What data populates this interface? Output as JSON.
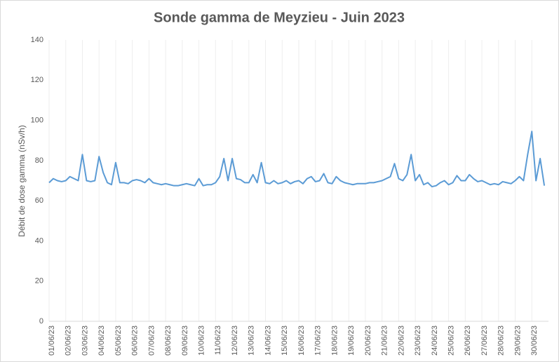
{
  "chart_data": {
    "type": "line",
    "title": "Sonde gamma de Meyzieu - Juin 2023",
    "y_label": "Débit de dose gamma (nSv/h)",
    "categories": [
      "01/06/23",
      null,
      null,
      null,
      "02/06/23",
      null,
      null,
      null,
      "03/06/23",
      null,
      null,
      null,
      "04/06/23",
      null,
      null,
      null,
      "05/06/23",
      null,
      null,
      null,
      "06/06/23",
      null,
      null,
      null,
      "07/06/23",
      null,
      null,
      null,
      "08/06/23",
      null,
      null,
      null,
      "09/06/23",
      null,
      null,
      null,
      "10/06/23",
      null,
      null,
      null,
      "11/06/23",
      null,
      null,
      null,
      "12/06/23",
      null,
      null,
      null,
      "13/06/23",
      null,
      null,
      null,
      "14/06/23",
      null,
      null,
      null,
      "15/06/23",
      null,
      null,
      null,
      "16/06/23",
      null,
      null,
      null,
      "17/06/23",
      null,
      null,
      null,
      "18/06/23",
      null,
      null,
      null,
      "19/06/23",
      null,
      null,
      null,
      "20/06/23",
      null,
      null,
      null,
      "21/06/23",
      null,
      null,
      null,
      "22/06/23",
      null,
      null,
      null,
      "23/06/23",
      null,
      null,
      null,
      "24/06/23",
      null,
      null,
      null,
      "25/06/23",
      null,
      null,
      null,
      "26/06/23",
      null,
      null,
      null,
      "27/06/23",
      null,
      null,
      null,
      "28/06/23",
      null,
      null,
      null,
      "29/06/23",
      null,
      null,
      null,
      "30/06/23",
      null,
      null,
      null
    ],
    "values": [
      69,
      71,
      70,
      69.5,
      70,
      72,
      71,
      70,
      83,
      70,
      69.5,
      70,
      82,
      74,
      69,
      68,
      79,
      69,
      69,
      68.5,
      70,
      70.5,
      70,
      69,
      71,
      69,
      68.5,
      68,
      68.5,
      68,
      67.5,
      67.5,
      68,
      68.5,
      68,
      67.5,
      71,
      67.5,
      68,
      68,
      69,
      72,
      81,
      70,
      81,
      71,
      70.5,
      69,
      69,
      73,
      69,
      79,
      69,
      68.5,
      70,
      68.5,
      69,
      70,
      68.5,
      69.5,
      70,
      68.5,
      71,
      72,
      69.5,
      70,
      73.5,
      69,
      68.5,
      72,
      70,
      69,
      68.5,
      68,
      68.5,
      68.5,
      68.5,
      69,
      69,
      69.5,
      70,
      71,
      72,
      78.5,
      71,
      70,
      73,
      83,
      70,
      73,
      68,
      69,
      67,
      67.5,
      69,
      70,
      68,
      69,
      72.5,
      70,
      70,
      73,
      71,
      69.5,
      70,
      69,
      68,
      68.5,
      68,
      69.5,
      69,
      68.5,
      70,
      72,
      70,
      83,
      94.5,
      70,
      81,
      67.5
    ],
    "color": "#5b9bd5",
    "ylim": [
      0,
      140
    ],
    "yticks": [
      0,
      20,
      40,
      60,
      80,
      100,
      120,
      140
    ],
    "grid": "x"
  }
}
